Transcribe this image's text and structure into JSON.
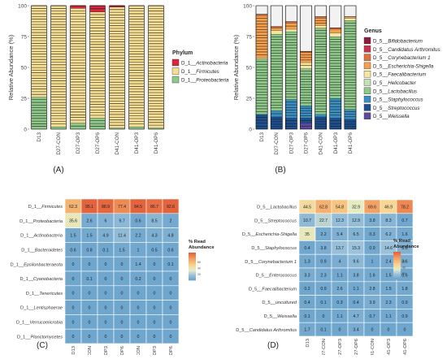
{
  "panel_labels": [
    "(A)",
    "(B)",
    "(C)",
    "(D)"
  ],
  "samples": [
    "D13",
    "D27-CON",
    "D27-OP3",
    "D27-OP6",
    "D41-CON",
    "D41-OP3",
    "D41-OP6"
  ],
  "chart_data": [
    {
      "type": "bar",
      "stacked": true,
      "panel": "(A)",
      "ylabel": "Relative Abundance (%)",
      "ylim": [
        0,
        100
      ],
      "yticks": [
        0,
        25,
        50,
        75,
        100
      ],
      "categories": [
        "D13",
        "D27-CON",
        "D27-OP3",
        "D27-OP6",
        "D41-CON",
        "D41-OP3",
        "D41-OP6"
      ],
      "legend": {
        "title": "Phylum",
        "position": "right"
      },
      "series": [
        {
          "name": "D_1__Proteobacteria",
          "color": "#8fc98a",
          "values": [
            26,
            2,
            5,
            9,
            1,
            2,
            1
          ]
        },
        {
          "name": "D_1__Firmicutes",
          "color": "#f6df93",
          "values": [
            74,
            98,
            93,
            86,
            98,
            98,
            99
          ]
        },
        {
          "name": "D_1__Actinobacteria",
          "color": "#d7263d",
          "values": [
            0,
            0,
            2,
            5,
            1,
            0,
            0
          ]
        }
      ]
    },
    {
      "type": "bar",
      "stacked": true,
      "panel": "(B)",
      "ylabel": "Relative Abundance (%)",
      "ylim": [
        0,
        100
      ],
      "yticks": [
        0,
        25,
        50,
        75,
        100
      ],
      "categories": [
        "D13",
        "D27-CON",
        "D27-OP3",
        "D27-OP6",
        "D41-CON",
        "D41-OP3",
        "D41-OP6"
      ],
      "legend": {
        "title": "Genus",
        "position": "right"
      },
      "series": [
        {
          "name": "D_5__Weissella",
          "color": "#5b4a9e",
          "values": [
            0,
            0,
            0,
            5,
            0,
            0,
            0
          ]
        },
        {
          "name": "D_5__Streptococcus",
          "color": "#1d4f91",
          "values": [
            12,
            10,
            9,
            4,
            10,
            9,
            8
          ]
        },
        {
          "name": "D_5__Staphylococcus",
          "color": "#3a8fc0",
          "values": [
            0,
            5,
            15,
            10,
            2,
            16,
            8
          ]
        },
        {
          "name": "D_5__Lactobacillus",
          "color": "#8fc98a",
          "values": [
            45,
            62,
            55,
            30,
            70,
            50,
            72
          ]
        },
        {
          "name": "D_5__Helicobacter",
          "color": "#c4e2b6",
          "values": [
            0,
            0,
            0,
            0,
            0,
            0,
            0
          ]
        },
        {
          "name": "D_5__Faecalibacterium",
          "color": "#f6e79e",
          "values": [
            1,
            3,
            2,
            5,
            2,
            3,
            2
          ]
        },
        {
          "name": "D_5__Escherichia-Shigella",
          "color": "#f6a04d",
          "values": [
            34,
            2,
            5,
            8,
            6,
            3,
            1
          ]
        },
        {
          "name": "D_5__Corynebacterium 1",
          "color": "#e2703a",
          "values": [
            1,
            1,
            1,
            1,
            1,
            1,
            0
          ]
        },
        {
          "name": "D_5__Candidatus Arthromitus",
          "color": "#c8324f",
          "values": [
            0,
            0,
            0,
            0,
            0,
            0,
            0
          ]
        },
        {
          "name": "D_5__Bifidobacterium",
          "color": "#8e1c3e",
          "values": [
            0,
            0,
            0,
            0,
            0,
            0,
            0
          ]
        }
      ]
    },
    {
      "type": "heatmap",
      "panel": "(C)",
      "legend": {
        "title": "% Read Abundance",
        "position": "right"
      },
      "colorbar_ticks": [
        "60",
        "40",
        "20"
      ],
      "columns": [
        "D13",
        "D27-CON",
        "D27-OP3",
        "D27-OP6",
        "D41-CON",
        "D41-OP3",
        "D41-OP6"
      ],
      "rows": [
        {
          "label": "D_1__Firmicutes",
          "values": [
            "62.3",
            "95.1",
            "88.9",
            "77.4",
            "94.5",
            "86.7",
            "92.6"
          ]
        },
        {
          "label": "D_1__Proteobacteria",
          "values": [
            "35.6",
            "2.6",
            "6",
            "9.7",
            "0.6",
            "8.5",
            "2"
          ]
        },
        {
          "label": "D_1__Actinobacteria",
          "values": [
            "1.5",
            "1.5",
            "4.9",
            "11.4",
            "2.2",
            "4.3",
            "4.8"
          ]
        },
        {
          "label": "D_1__Bacteroidetes",
          "values": [
            "0.6",
            "0.8",
            "0.1",
            "1.5",
            "1",
            "0.5",
            "0.6"
          ]
        },
        {
          "label": "D_1__Epsilonbacteraeota",
          "values": [
            "0",
            "0",
            "0",
            "0",
            "1.4",
            "0",
            "0.1"
          ]
        },
        {
          "label": "D_1__Cyanobacteria",
          "values": [
            "0",
            "0.1",
            "0",
            "0",
            "0.2",
            "0",
            "0"
          ]
        },
        {
          "label": "D_1__Tenericutes",
          "values": [
            "0",
            "0",
            "0",
            "0",
            "0",
            "0",
            "0"
          ]
        },
        {
          "label": "D_1__Lentisphaerae",
          "values": [
            "0",
            "0",
            "0",
            "0",
            "0",
            "0",
            "0"
          ]
        },
        {
          "label": "D_1__Verrucomicrobia",
          "values": [
            "0",
            "0",
            "0",
            "0",
            "0",
            "0",
            "0"
          ]
        },
        {
          "label": "D_1__Planctomycetes",
          "values": [
            "0",
            "0",
            "0",
            "0",
            "0",
            "0",
            "0"
          ]
        }
      ]
    },
    {
      "type": "heatmap",
      "panel": "(D)",
      "legend": {
        "title": "% Read Abundance",
        "position": "right"
      },
      "colorbar_ticks": [
        "60",
        "40",
        "20"
      ],
      "columns": [
        "D13",
        "D27-CON",
        "D27-OP3",
        "D27-OP6",
        "D41-CON",
        "D41-OP3",
        "D41-OP6"
      ],
      "rows": [
        {
          "label": "D_5__Lactobacillus",
          "values": [
            "44.5",
            "62.8",
            "54.8",
            "32.9",
            "69.6",
            "46.9",
            "78.2"
          ]
        },
        {
          "label": "D_5__Streptococcus",
          "values": [
            "10.7",
            "22.7",
            "12.3",
            "12.9",
            "3.8",
            "8.3",
            "0.7"
          ]
        },
        {
          "label": "D_5__Escherichia-Shigella",
          "values": [
            "35",
            "2.2",
            "5.4",
            "6.5",
            "0.3",
            "6.2",
            "1.6"
          ]
        },
        {
          "label": "D_5__Staphylococcus",
          "values": [
            "0.4",
            "3.8",
            "13.7",
            "15.3",
            "0.9",
            "14.6",
            "6.6"
          ]
        },
        {
          "label": "D_5__Corynebacterium 1",
          "values": [
            "1.3",
            "0.9",
            "4",
            "9.6",
            "1",
            "2.4",
            "3.6"
          ]
        },
        {
          "label": "D_5__Enterococcus",
          "values": [
            "3.3",
            "2.3",
            "1.1",
            "3.8",
            "1.6",
            "1.5",
            "0.6"
          ]
        },
        {
          "label": "D_5__Faecalibacterium",
          "values": [
            "0.2",
            "0.9",
            "2.6",
            "1.1",
            "2.8",
            "1.5",
            "1.8"
          ]
        },
        {
          "label": "D_5__uncultured",
          "values": [
            "0.4",
            "0.1",
            "0.3",
            "0.4",
            "3.9",
            "2.3",
            "0.9"
          ]
        },
        {
          "label": "D_5__Weissella",
          "values": [
            "0.1",
            "0",
            "1.1",
            "4.7",
            "0.7",
            "1.1",
            "0.9"
          ]
        },
        {
          "label": "D_5__Candidatus Arthromitus",
          "values": [
            "1.7",
            "0.1",
            "0",
            "3.4",
            "0",
            "0",
            "0"
          ]
        }
      ]
    }
  ]
}
